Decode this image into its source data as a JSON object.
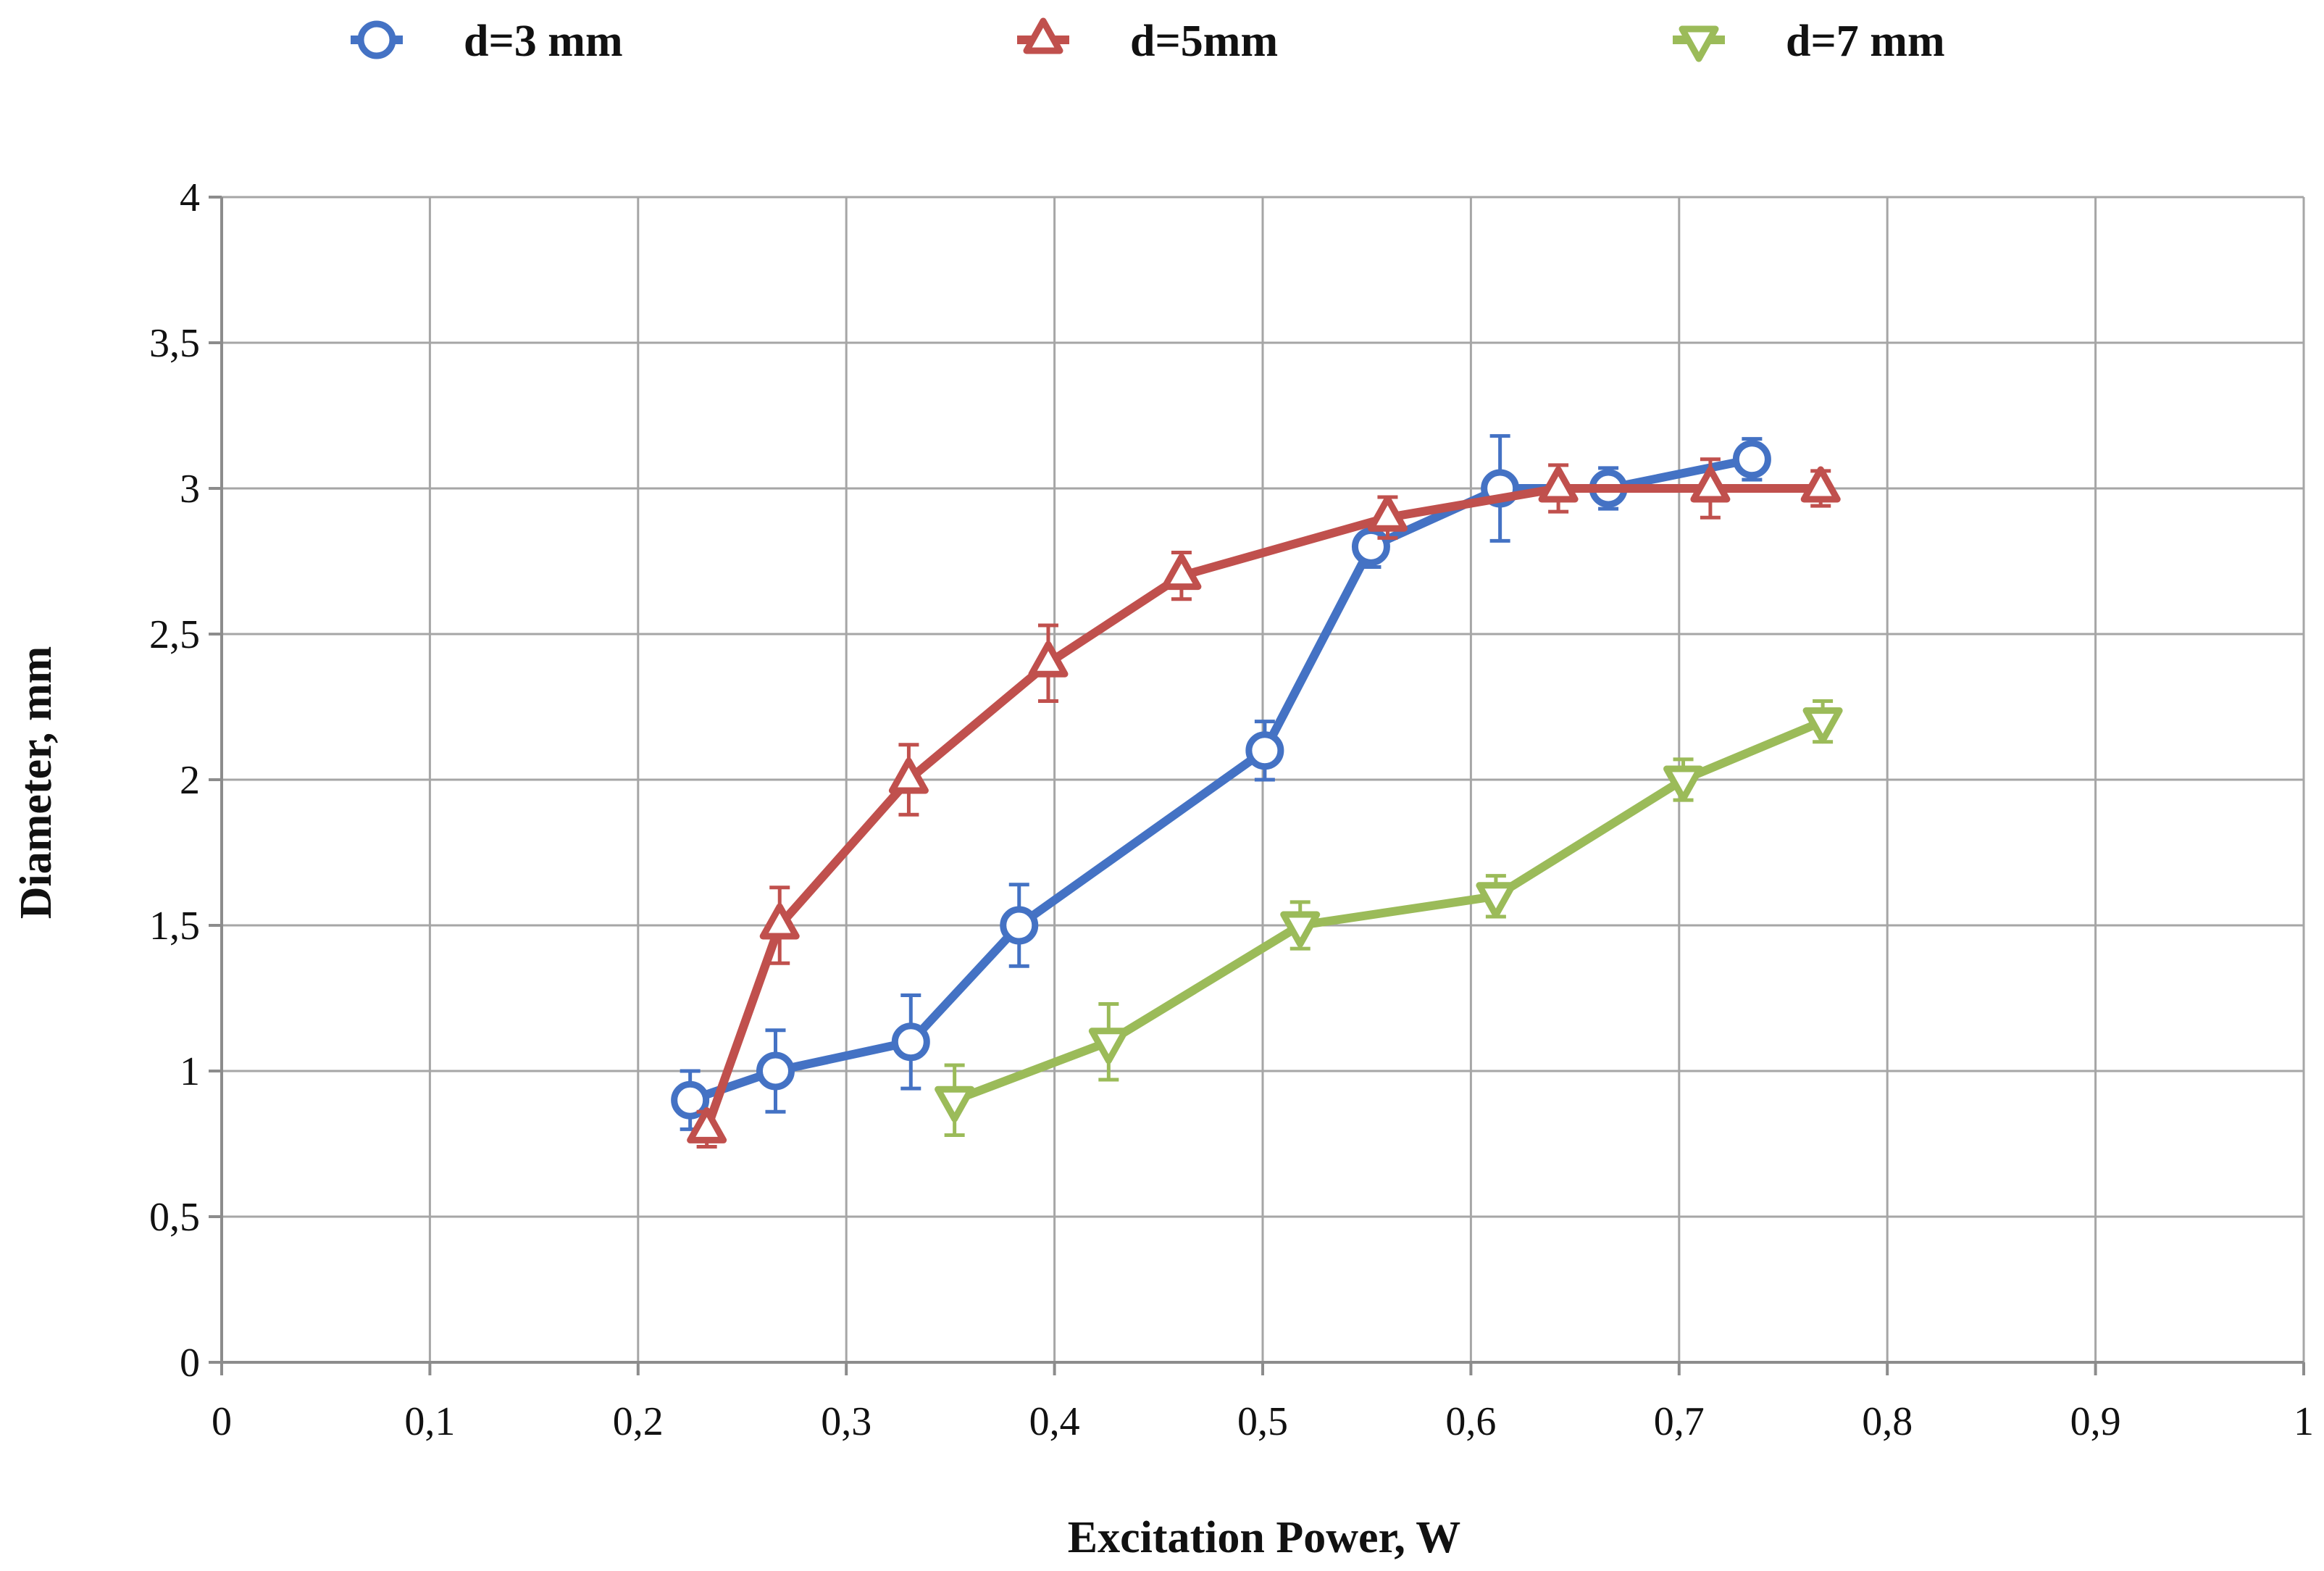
{
  "chart_data": {
    "type": "line",
    "title": "",
    "xlabel": "Excitation Power, W",
    "ylabel": "Diameter, mm",
    "xlim": [
      0,
      1
    ],
    "ylim": [
      0,
      4
    ],
    "x_ticks": [
      0,
      0.1,
      0.2,
      0.3,
      0.4,
      0.5,
      0.6,
      0.7,
      0.8,
      0.9,
      1
    ],
    "x_tick_labels": [
      "0",
      "0,1",
      "0,2",
      "0,3",
      "0,4",
      "0,5",
      "0,6",
      "0,7",
      "0,8",
      "0,9",
      "1"
    ],
    "y_ticks": [
      0,
      0.5,
      1,
      1.5,
      2,
      2.5,
      3,
      3.5,
      4
    ],
    "y_tick_labels": [
      "0",
      "0,5",
      "1",
      "1,5",
      "2",
      "2,5",
      "3",
      "3,5",
      "4"
    ],
    "grid": true,
    "legend_position": "top",
    "series": [
      {
        "name": "d=3 mm",
        "marker": "circle",
        "color": "#4472C4",
        "x": [
          0.225,
          0.266,
          0.331,
          0.383,
          0.501,
          0.552,
          0.614,
          0.666,
          0.735
        ],
        "y": [
          0.9,
          1.0,
          1.1,
          1.5,
          2.1,
          2.8,
          3.0,
          3.0,
          3.1
        ],
        "err": [
          0.1,
          0.14,
          0.16,
          0.14,
          0.1,
          0.07,
          0.18,
          0.07,
          0.07
        ]
      },
      {
        "name": "d=5mm",
        "marker": "triangle-up",
        "color": "#C0504D",
        "x": [
          0.233,
          0.268,
          0.33,
          0.397,
          0.461,
          0.56,
          0.642,
          0.715,
          0.768
        ],
        "y": [
          0.8,
          1.5,
          2.0,
          2.4,
          2.7,
          2.9,
          3.0,
          3.0,
          3.0
        ],
        "err": [
          0.06,
          0.13,
          0.12,
          0.13,
          0.08,
          0.07,
          0.08,
          0.1,
          0.06
        ]
      },
      {
        "name": "d=7 mm",
        "marker": "triangle-down",
        "color": "#9BBB59",
        "x": [
          0.352,
          0.426,
          0.518,
          0.612,
          0.702,
          0.769
        ],
        "y": [
          0.9,
          1.1,
          1.5,
          1.6,
          2.0,
          2.2
        ],
        "err": [
          0.12,
          0.13,
          0.08,
          0.07,
          0.07,
          0.07
        ]
      }
    ]
  }
}
